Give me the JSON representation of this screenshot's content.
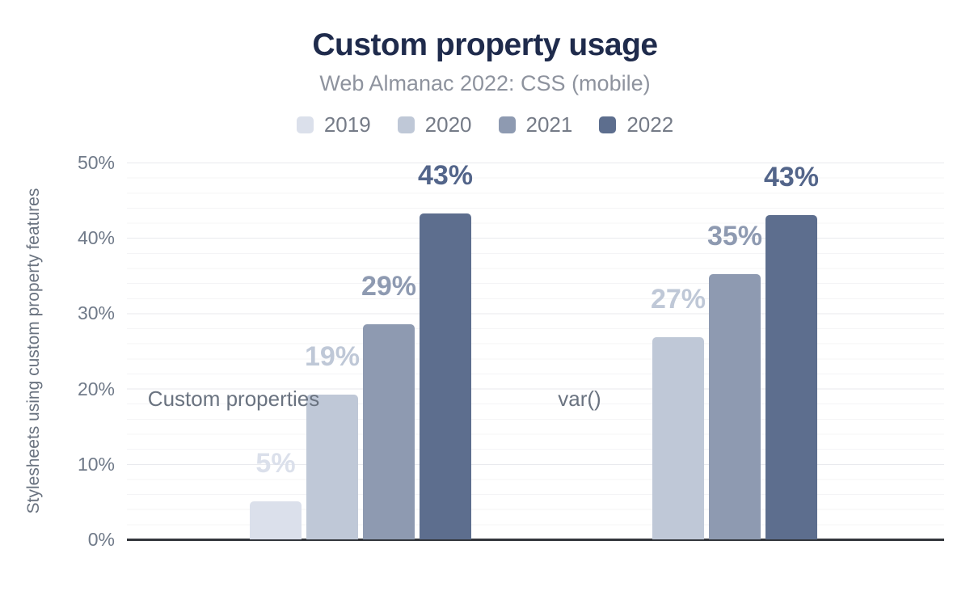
{
  "chart_data": {
    "type": "bar",
    "title": "Custom property usage",
    "subtitle": "Web Almanac 2022: CSS (mobile)",
    "ylabel": "Stylesheets using custom property features",
    "ylim": [
      0,
      50
    ],
    "grid": {
      "minor_step": 2,
      "major_step": 10,
      "visible": true
    },
    "legend_position": "top",
    "yticks": [
      {
        "value": 0,
        "label": "0%"
      },
      {
        "value": 10,
        "label": "10%"
      },
      {
        "value": 20,
        "label": "20%"
      },
      {
        "value": 30,
        "label": "30%"
      },
      {
        "value": 40,
        "label": "40%"
      },
      {
        "value": 50,
        "label": "50%"
      }
    ],
    "categories": [
      "Custom properties",
      "var()"
    ],
    "series": [
      {
        "name": "2019",
        "color": "#dbe0eb",
        "label_color": "#dbe0eb",
        "values": [
          5,
          null
        ],
        "labels": [
          "5%",
          null
        ]
      },
      {
        "name": "2020",
        "color": "#bfc8d7",
        "label_color": "#bfc8d7",
        "values": [
          19.2,
          26.8
        ],
        "labels": [
          "19%",
          "27%"
        ]
      },
      {
        "name": "2021",
        "color": "#8e9ab1",
        "label_color": "#8e9ab1",
        "values": [
          28.5,
          35.2
        ],
        "labels": [
          "29%",
          "35%"
        ]
      },
      {
        "name": "2022",
        "color": "#5d6e8e",
        "label_color": "#53658a",
        "values": [
          43.2,
          43.0
        ],
        "labels": [
          "43%",
          "43%"
        ]
      }
    ],
    "colors": {
      "title": "#1f2b4c",
      "subtitle": "#8e939e",
      "axis_line": "#33363c",
      "tick_text": "#707a89"
    }
  }
}
